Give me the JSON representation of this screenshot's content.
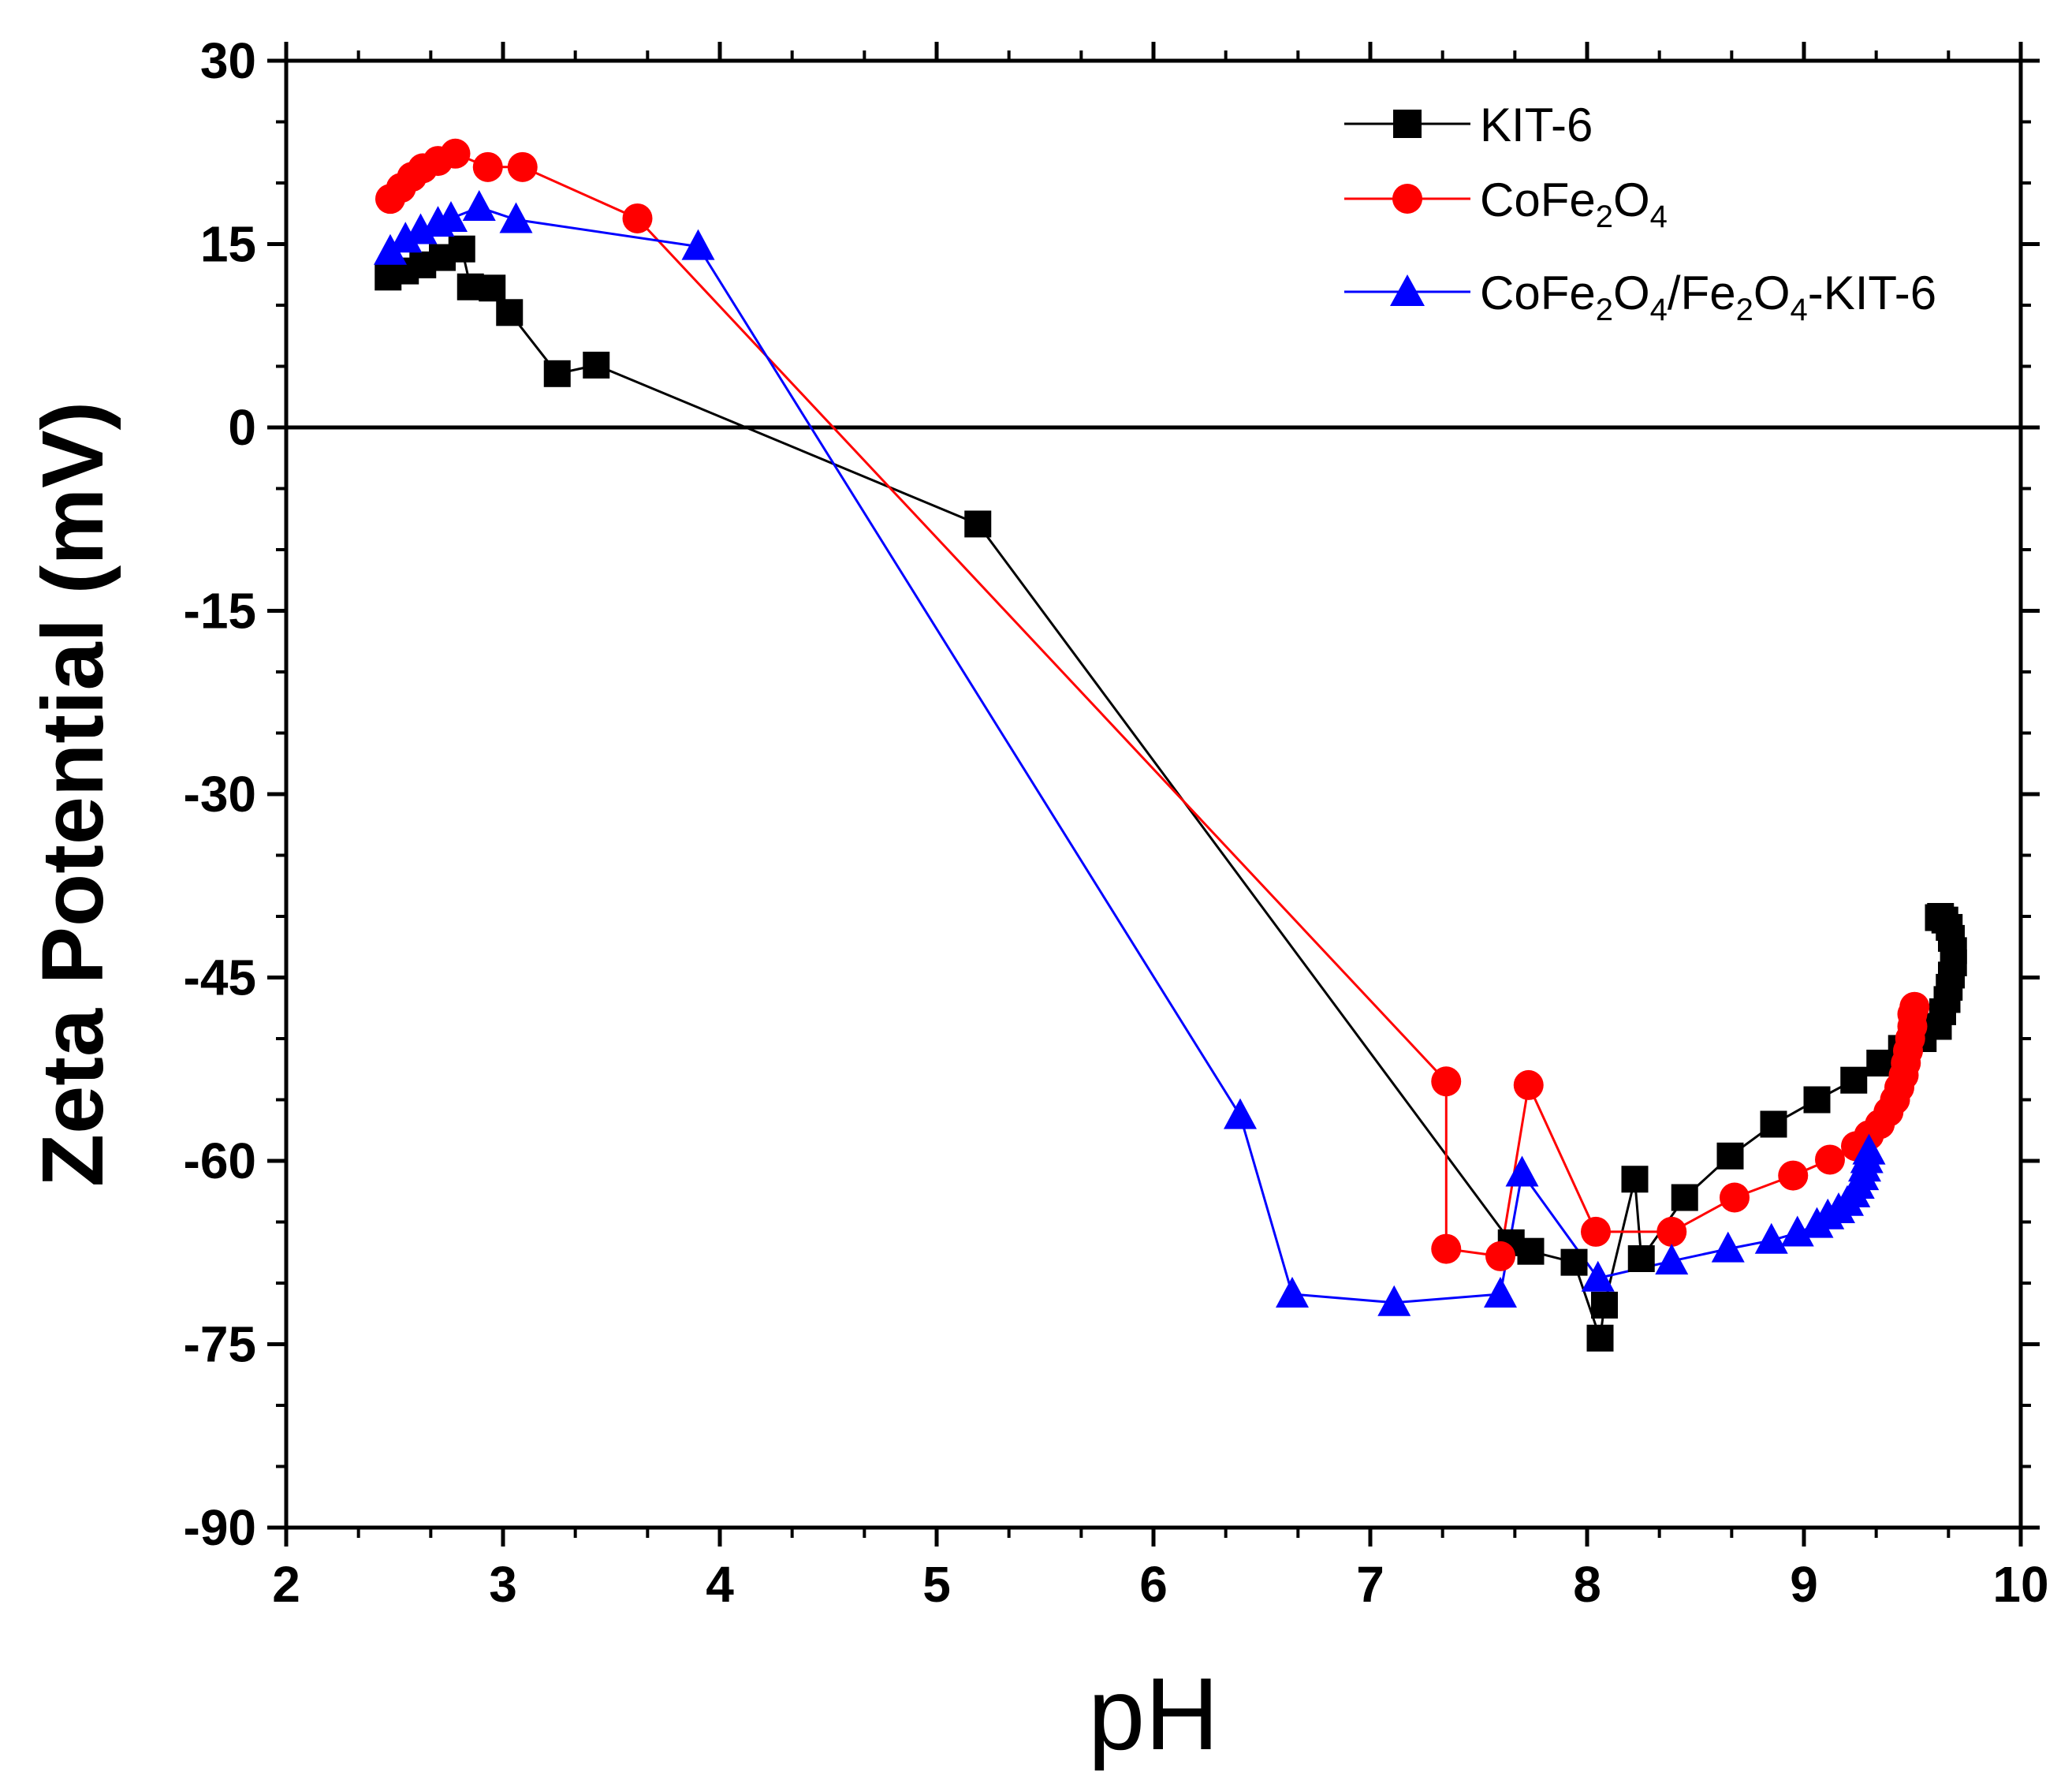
{
  "chart_data": {
    "type": "line",
    "title": "",
    "xlabel": "pH",
    "ylabel": "Zeta Potential (mV)",
    "xlim": [
      2,
      10
    ],
    "ylim": [
      -90,
      30
    ],
    "xticks": [
      2,
      3,
      4,
      5,
      6,
      7,
      8,
      9,
      10
    ],
    "yticks": [
      30,
      15,
      0,
      -15,
      -30,
      -45,
      -60,
      -75,
      -90
    ],
    "x_tick_labels": [
      "2",
      "3",
      "4",
      "5",
      "6",
      "7",
      "8",
      "9",
      "10"
    ],
    "y_tick_labels": [
      "30",
      "15",
      "0",
      "-15",
      "-30",
      "-45",
      "-60",
      "-75",
      "-90"
    ],
    "reference_line_y": 0,
    "legend_position": "top-right",
    "series": [
      {
        "name": "KIT-6",
        "legend": {
          "base": "KIT-6"
        },
        "color": "#000000",
        "marker": "square",
        "x": [
          2.47,
          2.55,
          2.63,
          2.72,
          2.81,
          2.85,
          2.95,
          3.03,
          3.25,
          3.43,
          5.19,
          7.65,
          7.74,
          7.94,
          8.06,
          8.08,
          8.22,
          8.25,
          8.45,
          8.66,
          8.86,
          9.06,
          9.23,
          9.35,
          9.45,
          9.55,
          9.62,
          9.64,
          9.66,
          9.67,
          9.68,
          9.69,
          9.69,
          9.68,
          9.67,
          9.65,
          9.63,
          9.62
        ],
        "y": [
          12.3,
          12.8,
          13.3,
          13.9,
          14.6,
          11.5,
          11.4,
          9.4,
          4.4,
          5.1,
          -7.9,
          -66.7,
          -67.4,
          -68.3,
          -74.5,
          -71.8,
          -61.5,
          -68.0,
          -63.0,
          -59.6,
          -57.0,
          -55.0,
          -53.4,
          -52.0,
          -50.8,
          -50.0,
          -49.0,
          -47.8,
          -46.8,
          -45.8,
          -44.8,
          -43.8,
          -42.8,
          -41.8,
          -40.9,
          -40.3,
          -40.0,
          -40.1
        ]
      },
      {
        "name": "CoFe2O4",
        "legend": {
          "base": "CoFe",
          "sub1": "2",
          "mid": "O",
          "sub2": "4",
          "tail": ""
        },
        "color": "#ff0000",
        "marker": "circle",
        "x": [
          2.48,
          2.53,
          2.58,
          2.63,
          2.7,
          2.78,
          2.93,
          3.09,
          3.62,
          7.35,
          7.35,
          7.6,
          7.73,
          8.04,
          8.39,
          8.68,
          8.95,
          9.12,
          9.24,
          9.3,
          9.35,
          9.39,
          9.42,
          9.44,
          9.46,
          9.47,
          9.48,
          9.49,
          9.5,
          9.5,
          9.51
        ],
        "y": [
          18.7,
          19.6,
          20.5,
          21.2,
          21.8,
          22.4,
          21.3,
          21.3,
          17.1,
          -53.5,
          -67.2,
          -67.8,
          -53.8,
          -65.8,
          -65.8,
          -63.0,
          -61.2,
          -59.9,
          -58.8,
          -57.9,
          -57.0,
          -56.0,
          -55.0,
          -54.0,
          -53.0,
          -52.0,
          -51.0,
          -50.0,
          -49.0,
          -48.0,
          -47.4
        ]
      },
      {
        "name": "CoFe2O4/Fe2O4-KIT-6",
        "legend": {
          "base": "CoFe",
          "sub1": "2",
          "mid": "O",
          "sub2": "4",
          "tail": "/Fe",
          "sub3": "2",
          "mid2": "O",
          "sub4": "4",
          "end": "-KIT-6"
        },
        "color": "#0000ff",
        "marker": "triangle",
        "x": [
          2.48,
          2.55,
          2.62,
          2.7,
          2.76,
          2.89,
          3.06,
          3.9,
          6.4,
          6.64,
          7.11,
          7.6,
          7.7,
          8.05,
          8.39,
          8.65,
          8.85,
          8.97,
          9.06,
          9.11,
          9.16,
          9.2,
          9.23,
          9.25,
          9.27,
          9.28,
          9.29,
          9.3
        ],
        "y": [
          14.4,
          15.4,
          16.1,
          16.7,
          17.1,
          18.0,
          17.0,
          14.8,
          -56.3,
          -70.9,
          -71.6,
          -70.9,
          -61.0,
          -69.6,
          -68.2,
          -67.2,
          -66.5,
          -65.9,
          -65.2,
          -64.5,
          -64.0,
          -63.4,
          -62.7,
          -62.0,
          -61.3,
          -60.6,
          -59.9,
          -59.2
        ]
      }
    ]
  }
}
